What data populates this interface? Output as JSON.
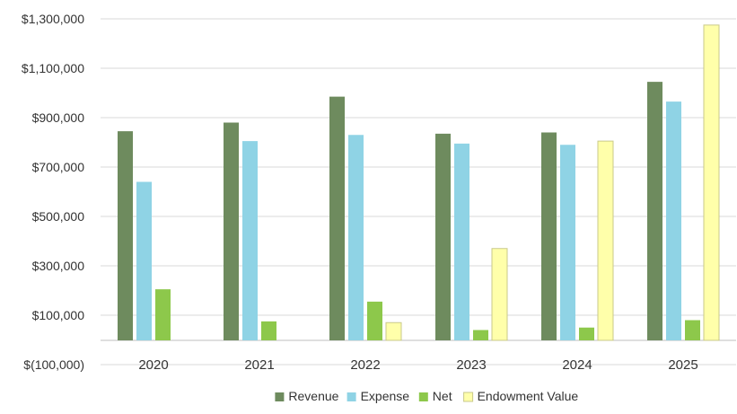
{
  "chart_data": {
    "type": "bar",
    "title": "",
    "xlabel": "",
    "ylabel": "",
    "categories": [
      "2020",
      "2021",
      "2022",
      "2023",
      "2024",
      "2025"
    ],
    "ylim": [
      -100000,
      1300000
    ],
    "yticks": [
      {
        "value": -100000,
        "label": "$(100,000)"
      },
      {
        "value": 100000,
        "label": "$100,000"
      },
      {
        "value": 300000,
        "label": "$300,000"
      },
      {
        "value": 500000,
        "label": "$500,000"
      },
      {
        "value": 700000,
        "label": "$700,000"
      },
      {
        "value": 900000,
        "label": "$900,000"
      },
      {
        "value": 1100000,
        "label": "$1,100,000"
      },
      {
        "value": 1300000,
        "label": "$1,300,000"
      }
    ],
    "series": [
      {
        "name": "Revenue",
        "color": "#6E8B5E",
        "values": [
          845000,
          880000,
          985000,
          835000,
          840000,
          1045000
        ]
      },
      {
        "name": "Expense",
        "color": "#8FD3E5",
        "values": [
          640000,
          805000,
          830000,
          795000,
          790000,
          965000
        ]
      },
      {
        "name": "Net",
        "color": "#8DC84B",
        "values": [
          205000,
          75000,
          155000,
          40000,
          50000,
          80000
        ]
      },
      {
        "name": "Endowment Value",
        "color": "#FFFFAA",
        "stroke": "#C9C98A",
        "values": [
          0,
          0,
          70000,
          370000,
          805000,
          1275000
        ]
      }
    ],
    "grid": true,
    "legend_position": "bottom"
  }
}
